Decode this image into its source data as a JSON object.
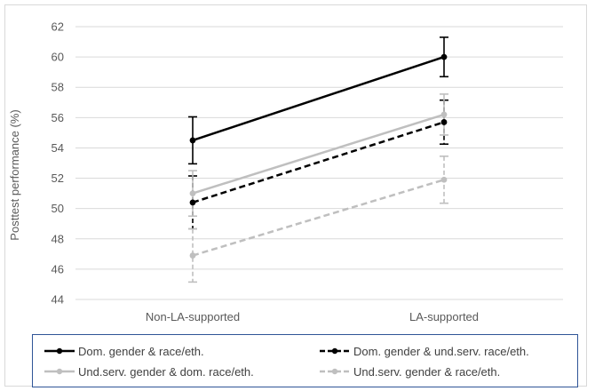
{
  "chart_data": {
    "type": "line",
    "categories": [
      "Non-LA-supported",
      "LA-supported"
    ],
    "ylabel": "Posttest performance (%)",
    "ylim": [
      44,
      62
    ],
    "yticks": [
      44,
      46,
      48,
      50,
      52,
      54,
      56,
      58,
      60,
      62
    ],
    "grid": true,
    "legend": "bottom",
    "series": [
      {
        "name": "Dom. gender & race/eth.",
        "values": [
          54.5,
          60.0
        ],
        "err": [
          1.55,
          1.3
        ],
        "color": "#000000",
        "dashed": false
      },
      {
        "name": "Dom. gender & und.serv. race/eth.",
        "values": [
          50.4,
          55.7
        ],
        "err": [
          1.75,
          1.45
        ],
        "color": "#000000",
        "dashed": true
      },
      {
        "name": "Und.serv. gender & dom. race/eth.",
        "values": [
          51.0,
          56.2
        ],
        "err": [
          1.5,
          1.35
        ],
        "color": "#bfbfbf",
        "dashed": false
      },
      {
        "name": "Und.serv. gender & race/eth.",
        "values": [
          46.9,
          51.9
        ],
        "err": [
          1.75,
          1.55
        ],
        "color": "#bfbfbf",
        "dashed": true
      }
    ]
  }
}
